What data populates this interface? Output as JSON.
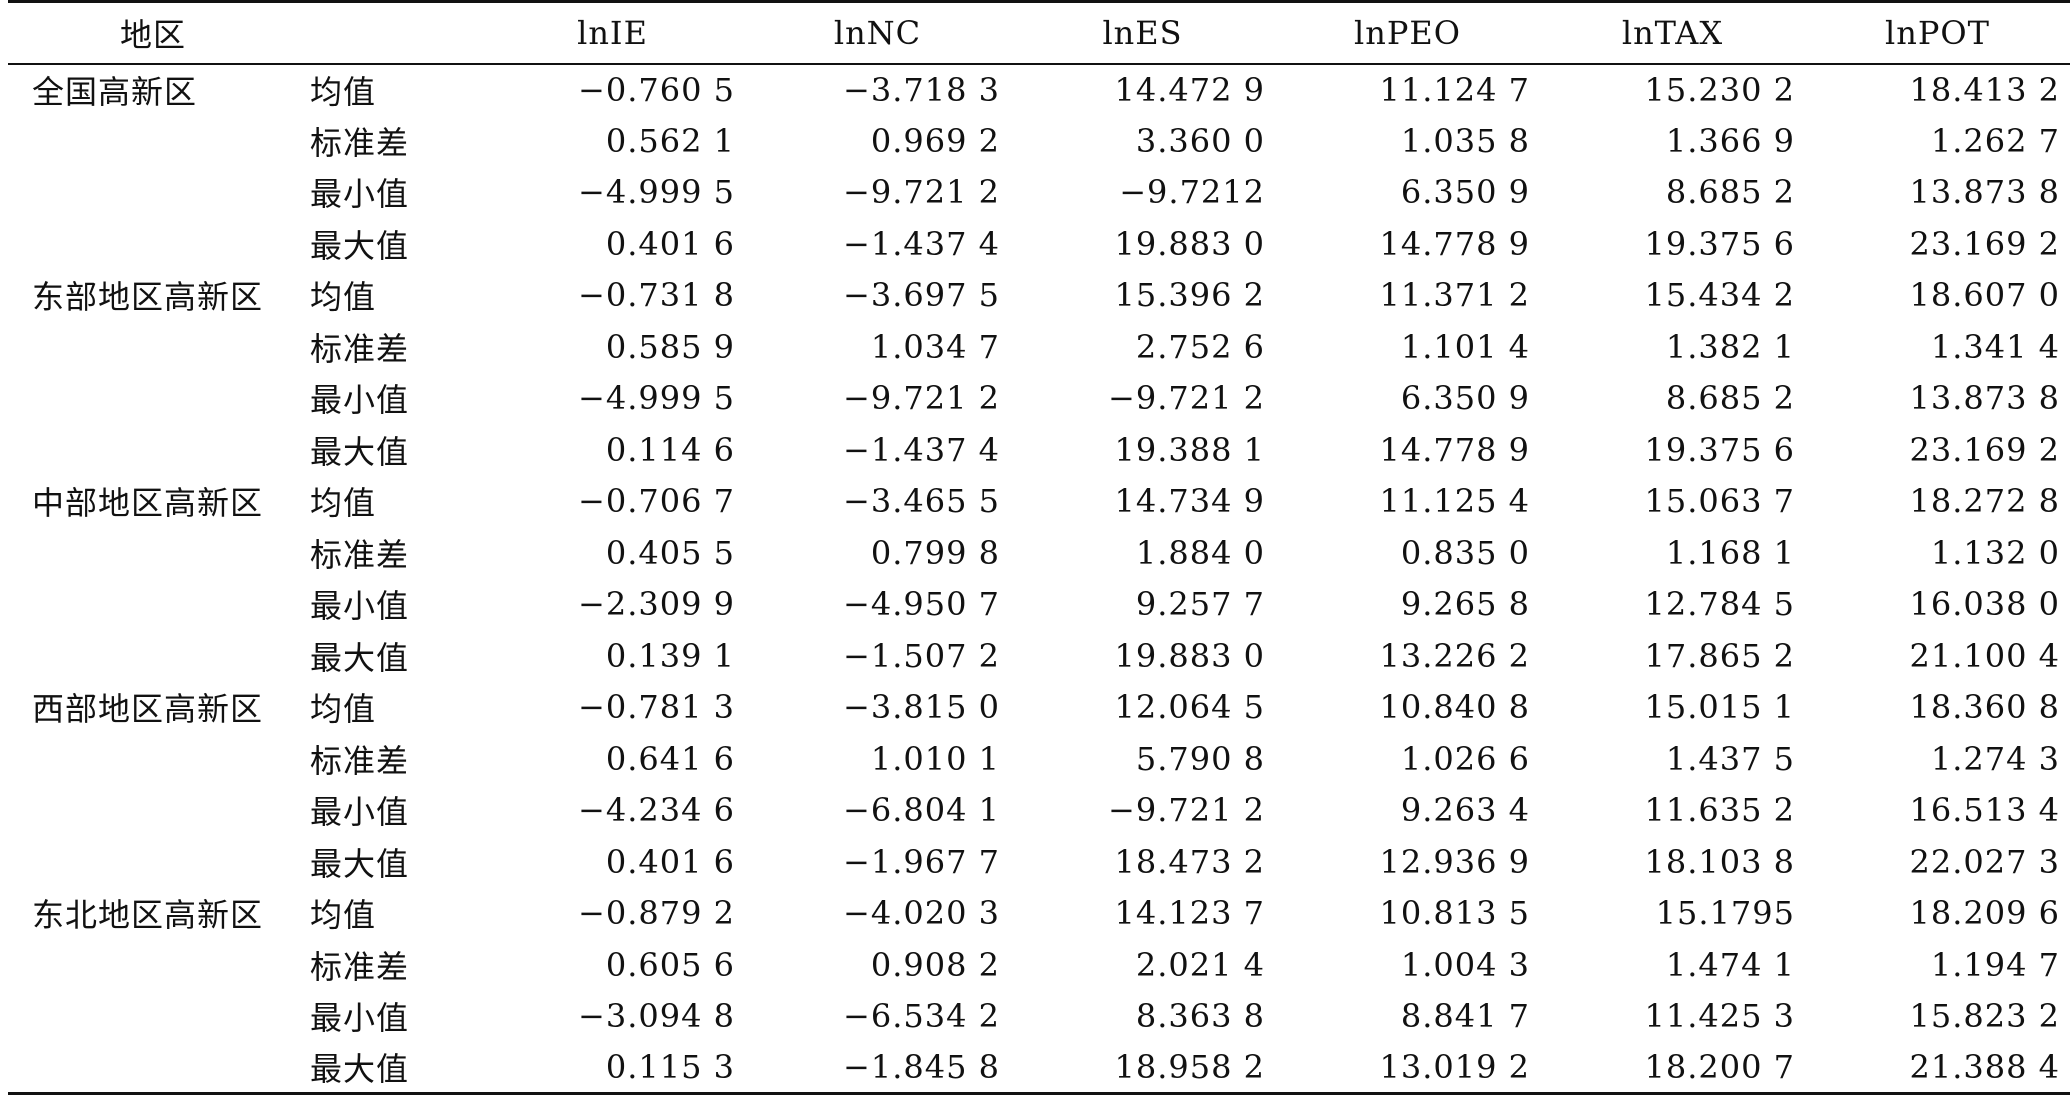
{
  "headers": [
    "地区",
    "",
    "lnIE",
    "lnNC",
    "lnES",
    "lnPEO",
    "lnTAX",
    "lnPOT"
  ],
  "rows": [
    [
      "全国高新区",
      "均值",
      "−0.760 5",
      "−3.718 3",
      "14.472 9",
      "11.124 7",
      "15.230 2",
      "18.413 2"
    ],
    [
      "",
      "标准差",
      "0.562 1",
      "0.969 2",
      "3.360 0",
      "1.035 8",
      "1.366 9",
      "1.262 7"
    ],
    [
      "",
      "最小值",
      "−4.999 5",
      "−9.721 2",
      "−9.7212",
      "6.350 9",
      "8.685 2",
      "13.873 8"
    ],
    [
      "",
      "最大值",
      "0.401 6",
      "−1.437 4",
      "19.883 0",
      "14.778 9",
      "19.375 6",
      "23.169 2"
    ],
    [
      "东部地区高新区",
      "均值",
      "−0.731 8",
      "−3.697 5",
      "15.396 2",
      "11.371 2",
      "15.434 2",
      "18.607 0"
    ],
    [
      "",
      "标准差",
      "0.585 9",
      "1.034 7",
      "2.752 6",
      "1.101 4",
      "1.382 1",
      "1.341 4"
    ],
    [
      "",
      "最小值",
      "−4.999 5",
      "−9.721 2",
      "−9.721 2",
      "6.350 9",
      "8.685 2",
      "13.873 8"
    ],
    [
      "",
      "最大值",
      "0.114 6",
      "−1.437 4",
      "19.388 1",
      "14.778 9",
      "19.375 6",
      "23.169 2"
    ],
    [
      "中部地区高新区",
      "均值",
      "−0.706 7",
      "−3.465 5",
      "14.734 9",
      "11.125 4",
      "15.063 7",
      "18.272 8"
    ],
    [
      "",
      "标准差",
      "0.405 5",
      "0.799 8",
      "1.884 0",
      "0.835 0",
      "1.168 1",
      "1.132 0"
    ],
    [
      "",
      "最小值",
      "−2.309 9",
      "−4.950 7",
      "9.257 7",
      "9.265 8",
      "12.784 5",
      "16.038 0"
    ],
    [
      "",
      "最大值",
      "0.139 1",
      "−1.507 2",
      "19.883 0",
      "13.226 2",
      "17.865 2",
      "21.100 4"
    ],
    [
      "西部地区高新区",
      "均值",
      "−0.781 3",
      "−3.815 0",
      "12.064 5",
      "10.840 8",
      "15.015 1",
      "18.360 8"
    ],
    [
      "",
      "标准差",
      "0.641 6",
      "1.010 1",
      "5.790 8",
      "1.026 6",
      "1.437 5",
      "1.274 3"
    ],
    [
      "",
      "最小值",
      "−4.234 6",
      "−6.804 1",
      "−9.721 2",
      "9.263 4",
      "11.635 2",
      "16.513 4"
    ],
    [
      "",
      "最大值",
      "0.401 6",
      "−1.967 7",
      "18.473 2",
      "12.936 9",
      "18.103 8",
      "22.027 3"
    ],
    [
      "东北地区高新区",
      "均值",
      "−0.879 2",
      "−4.020 3",
      "14.123 7",
      "10.813 5",
      "15.1795",
      "18.209 6"
    ],
    [
      "",
      "标准差",
      "0.605 6",
      "0.908 2",
      "2.021 4",
      "1.004 3",
      "1.474 1",
      "1.194 7"
    ],
    [
      "",
      "最小值",
      "−3.094 8",
      "−6.534 2",
      "8.363 8",
      "8.841 7",
      "11.425 3",
      "15.823 2"
    ],
    [
      "",
      "最大值",
      "0.115 3",
      "−1.845 8",
      "18.958 2",
      "13.019 2",
      "18.200 7",
      "21.388 4"
    ]
  ]
}
